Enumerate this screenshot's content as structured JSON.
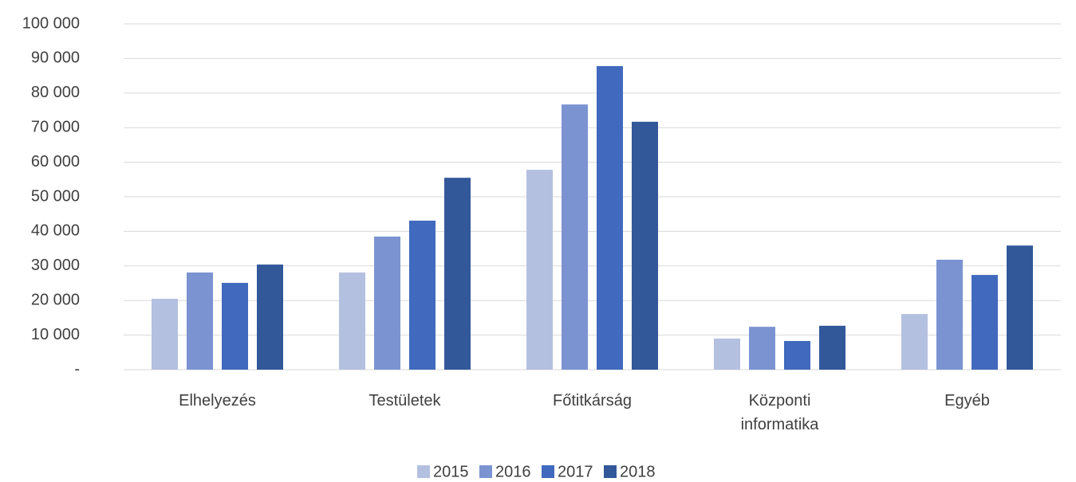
{
  "chart_data": {
    "type": "bar",
    "categories": [
      "Elhelyezés",
      "Testületek",
      "Főtitkárság",
      "Központi informatika",
      "Egyéb"
    ],
    "series": [
      {
        "name": "2015",
        "color": "#b4c0e0",
        "values": [
          20500,
          28100,
          57800,
          9000,
          16100
        ]
      },
      {
        "name": "2016",
        "color": "#7b93d1",
        "values": [
          28100,
          38500,
          76700,
          12400,
          31800
        ]
      },
      {
        "name": "2017",
        "color": "#4169bd",
        "values": [
          25100,
          43100,
          87800,
          8300,
          27400
        ]
      },
      {
        "name": "2018",
        "color": "#32589a",
        "values": [
          30400,
          55500,
          71700,
          12700,
          35900
        ]
      }
    ],
    "ylim": [
      0,
      100000
    ],
    "yticks": [
      {
        "value": 0,
        "label": "-"
      },
      {
        "value": 10000,
        "label": "10 000"
      },
      {
        "value": 20000,
        "label": "20 000"
      },
      {
        "value": 30000,
        "label": "30 000"
      },
      {
        "value": 40000,
        "label": "40 000"
      },
      {
        "value": 50000,
        "label": "50 000"
      },
      {
        "value": 60000,
        "label": "60 000"
      },
      {
        "value": 70000,
        "label": "70 000"
      },
      {
        "value": 80000,
        "label": "80 000"
      },
      {
        "value": 90000,
        "label": "90 000"
      },
      {
        "value": 100000,
        "label": "100 000"
      }
    ],
    "grid": true,
    "legend": "bottom"
  }
}
